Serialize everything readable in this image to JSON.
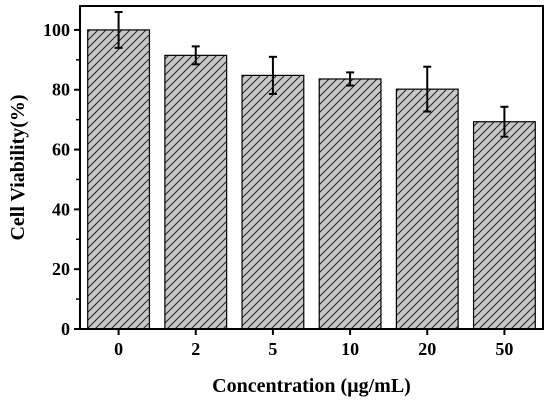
{
  "chart_data": {
    "type": "bar",
    "categories": [
      "0",
      "2",
      "5",
      "10",
      "20",
      "50"
    ],
    "values": [
      100,
      91.5,
      84.8,
      83.6,
      80.2,
      69.3
    ],
    "errors": [
      6,
      3,
      6.2,
      2.2,
      7.5,
      5
    ],
    "title": "",
    "xlabel": "Concentration (µg/mL)",
    "ylabel": "Cell Viability(%)",
    "ylim": [
      0,
      108
    ],
    "yticks": [
      "0",
      "20",
      "40",
      "60",
      "80",
      "100"
    ],
    "grid": false,
    "bar_fill": "#c8c8c8",
    "hatch": "diagonal"
  }
}
